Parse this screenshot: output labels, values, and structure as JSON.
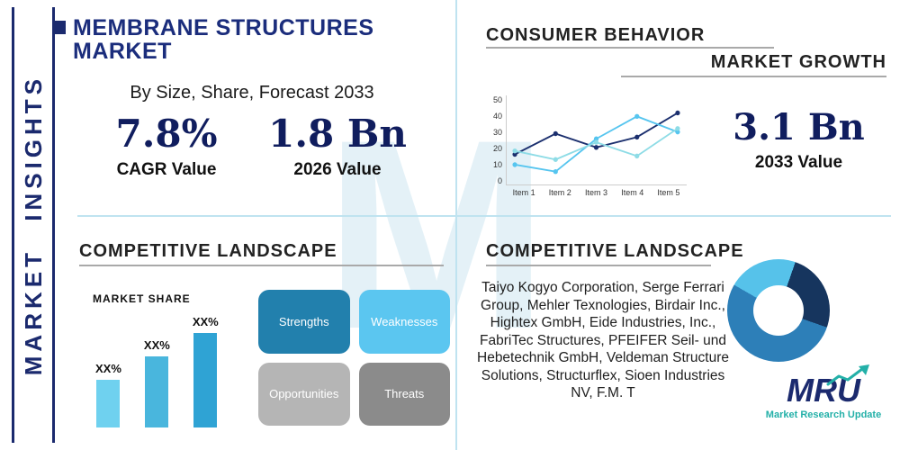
{
  "colors": {
    "navy": "#1b2a6e",
    "title_navy": "#1b2d7c",
    "stat_navy": "#101d5e",
    "divider_blue": "#bfe3f0",
    "heading_gray": "#222222",
    "teal_logo": "#23b0a8"
  },
  "watermark": {
    "text": "M"
  },
  "sidebar": {
    "label": "MARKET INSIGHTS"
  },
  "header": {
    "title": "MEMBRANE STRUCTURES MARKET",
    "subtitle": "By Size, Share, Forecast 2033"
  },
  "stats": {
    "cagr": {
      "value": "7.8%",
      "label": "CAGR Value"
    },
    "v2026": {
      "value": "1.8 Bn",
      "label": "2026 Value"
    },
    "v2033": {
      "value": "3.1 Bn",
      "label": "2033 Value"
    }
  },
  "consumer_behavior": {
    "title": "CONSUMER BEHAVIOR",
    "subtitle": "MARKET GROWTH"
  },
  "competitive_left": {
    "title": "COMPETITIVE LANDSCAPE",
    "market_share_label": "MARKET SHARE",
    "swot": [
      {
        "label": "Strengths",
        "color": "#2280ad"
      },
      {
        "label": "Weaknesses",
        "color": "#5bc6f0"
      },
      {
        "label": "Opportunities",
        "color": "#b5b5b5"
      },
      {
        "label": "Threats",
        "color": "#8b8b8b"
      }
    ]
  },
  "competitive_right": {
    "title": "COMPETITIVE LANDSCAPE",
    "companies": "Taiyo Kogyo Corporation, Serge Ferrari Group, Mehler Texnologies, Birdair Inc., Hightex GmbH, Eide Industries, Inc., FabriTec Structures, PFEIFER Seil- und Hebetechnik GmbH, Veldeman Structure Solutions, Structurflex, Sioen Industries NV, F.M. T"
  },
  "logo": {
    "name": "MRU",
    "tagline": "Market Research Update"
  },
  "chart_data": [
    {
      "type": "line",
      "title": "CONSUMER BEHAVIOR",
      "categories": [
        "Item 1",
        "Item 2",
        "Item 3",
        "Item 4",
        "Item 5"
      ],
      "series": [
        {
          "name": "series-navy",
          "color": "#1b2f6e",
          "values": [
            18,
            30,
            22,
            28,
            42
          ]
        },
        {
          "name": "series-sky",
          "color": "#56c5ef",
          "values": [
            12,
            8,
            27,
            40,
            31
          ]
        },
        {
          "name": "series-teal",
          "color": "#8edce6",
          "values": [
            20,
            15,
            25,
            17,
            33
          ]
        }
      ],
      "ylim": [
        0,
        50
      ],
      "yticks": [
        0,
        10,
        20,
        30,
        40,
        50
      ],
      "legend": false,
      "grid": false
    },
    {
      "type": "bar",
      "title": "MARKET SHARE",
      "categories": [
        "XX%",
        "XX%",
        "XX%"
      ],
      "values": [
        30,
        45,
        60
      ],
      "colors": [
        "#6fd1ef",
        "#49b6dd",
        "#2fa3d4"
      ],
      "ylim": [
        0,
        70
      ]
    },
    {
      "type": "pie",
      "title": "market-share-donut",
      "slices": [
        {
          "label": "segment-sky",
          "value": 22,
          "color": "#56c2ea"
        },
        {
          "label": "segment-navy",
          "value": 25,
          "color": "#16355e"
        },
        {
          "label": "segment-steel",
          "value": 53,
          "color": "#2d7fb8"
        }
      ],
      "start_angle": -60
    }
  ]
}
